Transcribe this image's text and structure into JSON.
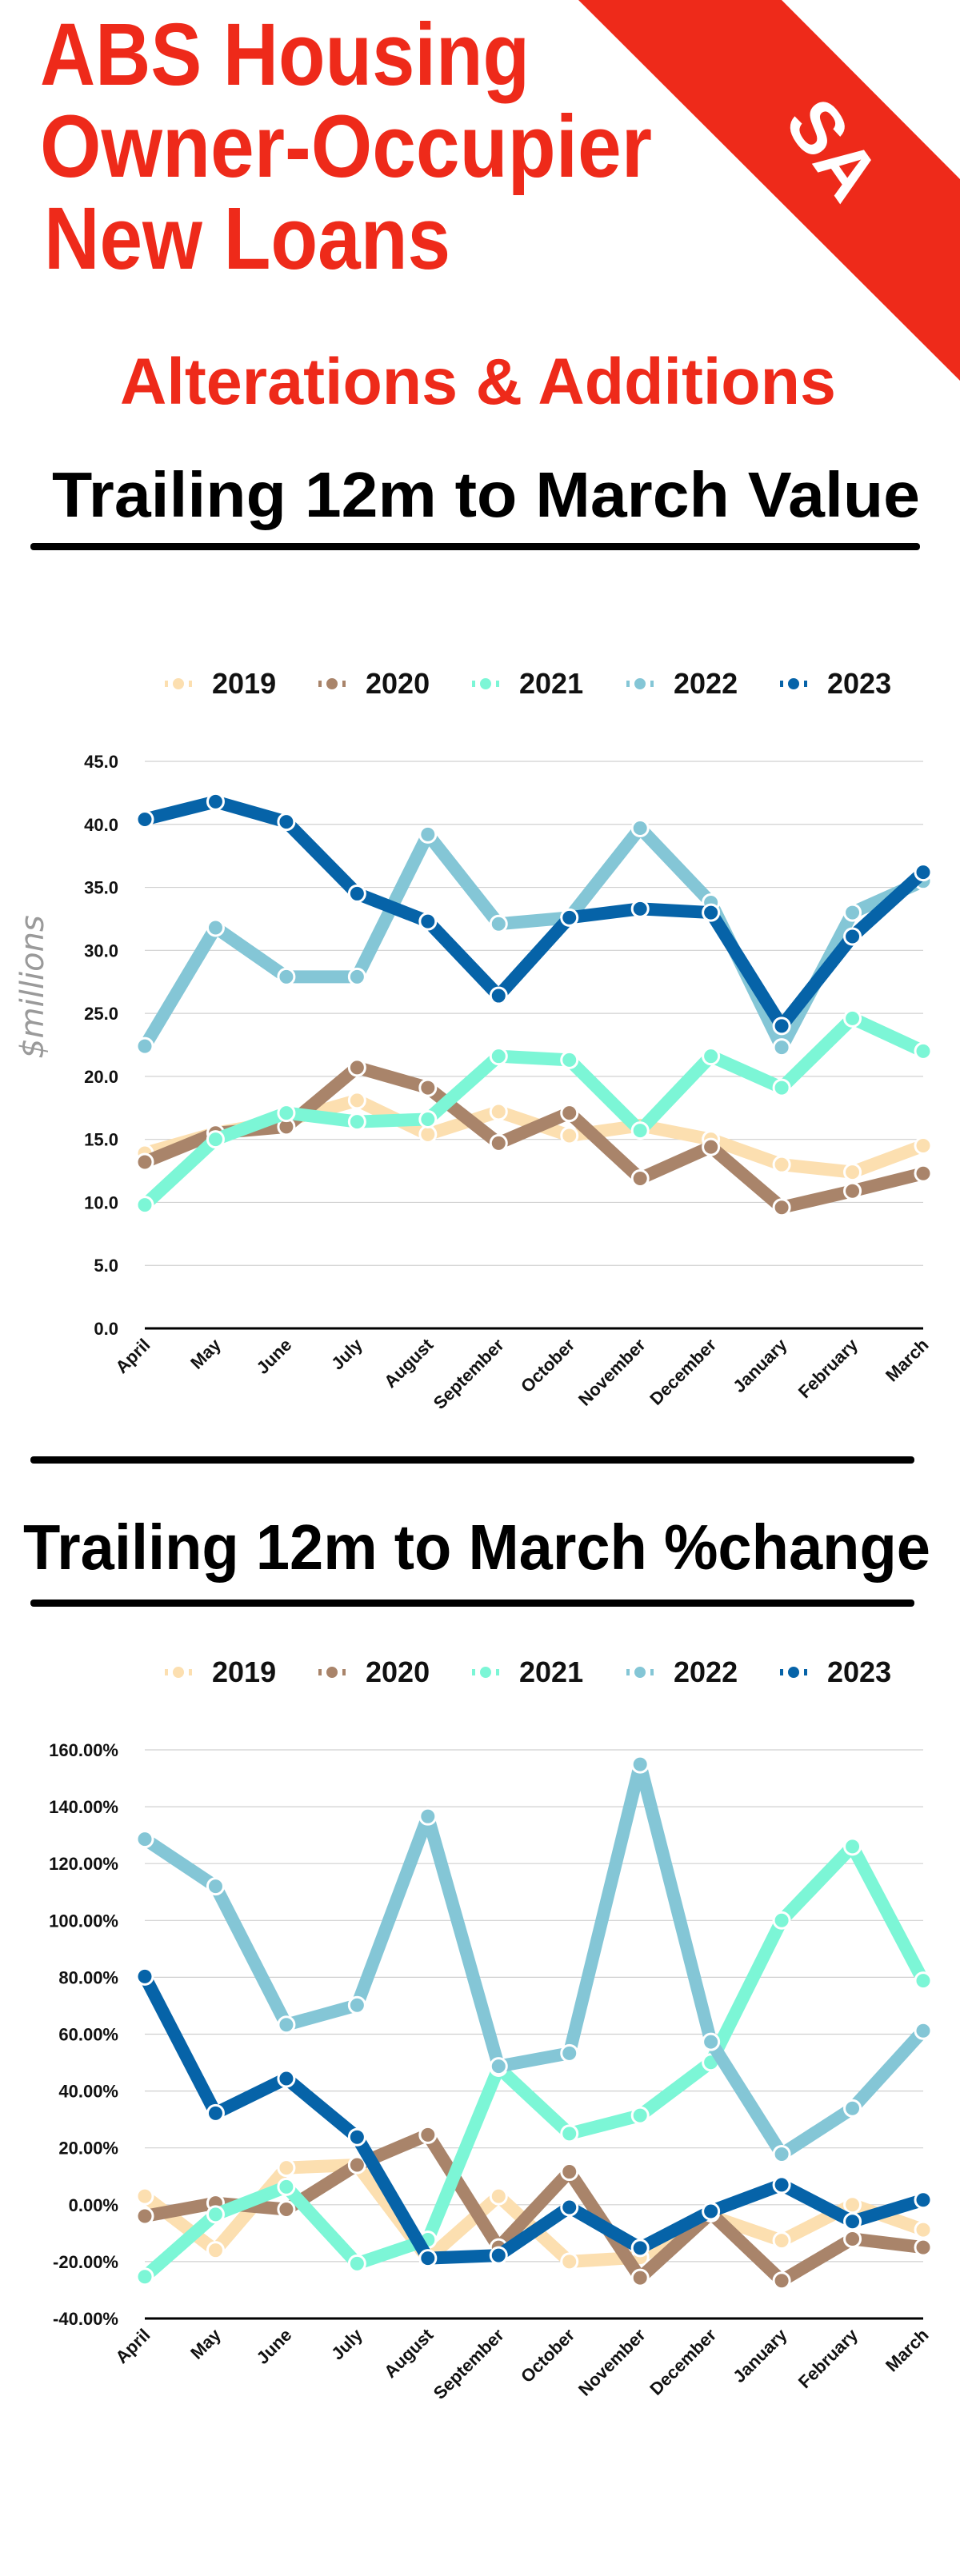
{
  "header": {
    "title_lines": [
      "ABS Housing",
      "Owner-Occupier",
      "New Loans"
    ],
    "subtitle": "Alterations & Additions",
    "region_badge": "SA",
    "accent_color": "#EE2A1A"
  },
  "chart_data": [
    {
      "type": "line",
      "title": "Trailing 12m to March Value",
      "ylabel": "$millions",
      "ylim": [
        0,
        45
      ],
      "yticks": [
        "0.0",
        "5.0",
        "10.0",
        "15.0",
        "20.0",
        "25.0",
        "30.0",
        "35.0",
        "40.0",
        "45.0"
      ],
      "grid": true,
      "legend": "top",
      "categories": [
        "April",
        "May",
        "June",
        "July",
        "August",
        "September",
        "October",
        "November",
        "December",
        "January",
        "February",
        "March"
      ],
      "series": [
        {
          "name": "2019",
          "color": "#FCDFB0",
          "values": [
            13.9,
            15.5,
            16.5,
            18.1,
            15.4,
            17.2,
            15.3,
            16.1,
            15.0,
            13.0,
            12.4,
            14.5
          ]
        },
        {
          "name": "2020",
          "color": "#A9846A",
          "values": [
            13.2,
            15.5,
            16.0,
            20.7,
            19.1,
            14.7,
            17.1,
            11.9,
            14.4,
            9.6,
            10.9,
            12.3
          ]
        },
        {
          "name": "2021",
          "color": "#7CF6D6",
          "values": [
            9.8,
            15.0,
            17.1,
            16.4,
            16.6,
            21.6,
            21.3,
            15.7,
            21.6,
            19.1,
            24.6,
            22.0
          ]
        },
        {
          "name": "2022",
          "color": "#84C6D6",
          "values": [
            22.4,
            31.8,
            27.9,
            27.9,
            39.2,
            32.1,
            32.6,
            39.7,
            33.8,
            22.3,
            33.0,
            35.5
          ]
        },
        {
          "name": "2023",
          "color": "#0663A8",
          "values": [
            40.4,
            41.8,
            40.2,
            34.5,
            32.3,
            26.4,
            32.6,
            33.3,
            33.0,
            24.0,
            31.1,
            36.2
          ]
        }
      ]
    },
    {
      "type": "line",
      "title": "Trailing 12m to March %change",
      "ylim": [
        -40,
        160
      ],
      "yticks": [
        "-40.00%",
        "-20.00%",
        "0.00%",
        "20.00%",
        "40.00%",
        "60.00%",
        "80.00%",
        "100.00%",
        "120.00%",
        "140.00%",
        "160.00%"
      ],
      "grid": true,
      "legend": "top",
      "categories": [
        "April",
        "May",
        "June",
        "July",
        "August",
        "September",
        "October",
        "November",
        "December",
        "January",
        "February",
        "March"
      ],
      "series": [
        {
          "name": "2019",
          "color": "#FCDFB0",
          "values": [
            3,
            -16,
            13,
            14,
            -19,
            3,
            -20,
            -18.5,
            -4,
            -12.6,
            0,
            -8.8
          ]
        },
        {
          "name": "2020",
          "color": "#A9846A",
          "values": [
            -4,
            0.6,
            -1.6,
            14,
            24.6,
            -15,
            11.6,
            -25.7,
            -3,
            -26.7,
            -12,
            -15
          ]
        },
        {
          "name": "2021",
          "color": "#7CF6D6",
          "values": [
            -25.3,
            -3.4,
            6.3,
            -20.7,
            -12.3,
            48.2,
            25,
            31.4,
            50.1,
            100,
            126,
            78.8
          ]
        },
        {
          "name": "2022",
          "color": "#84C6D6",
          "values": [
            128.6,
            112,
            63.3,
            70.2,
            136.6,
            48.7,
            53.3,
            154.9,
            57.3,
            17.8,
            33.9,
            61.2
          ]
        },
        {
          "name": "2023",
          "color": "#0663A8",
          "values": [
            80.3,
            32.2,
            44.4,
            23.8,
            -18.8,
            -17.8,
            -0.9,
            -15.2,
            -2.3,
            7,
            -5.9,
            1.7
          ]
        }
      ]
    }
  ]
}
